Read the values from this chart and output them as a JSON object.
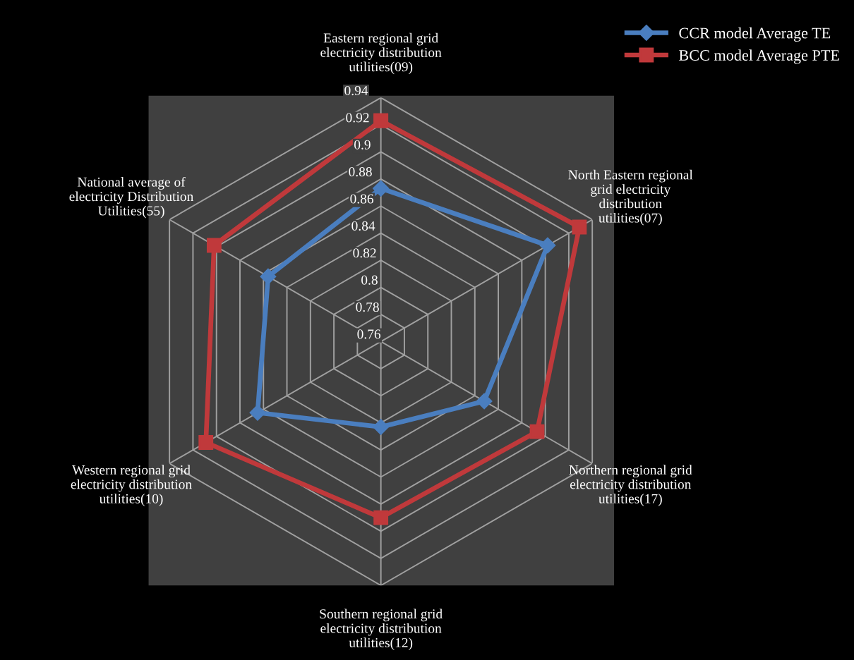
{
  "chart_data": {
    "type": "radar",
    "categories": [
      "Eastern regional grid\nelectricity distribution\nutilities(09)",
      "North Eastern regional\ngrid electricity\ndistribution\nutilities(07)",
      "Northern regional grid\nelectricity distribution\nutilities(17)",
      "Southern regional grid\nelectricity distribution\nutilities(12)",
      "Western regional grid\nelectricity distribution\nutilities(10)",
      "National average of\nelectricity Distribution\nUtilities(55)"
    ],
    "series": [
      {
        "name": "CCR model Average TE",
        "color": "#4a7ebf",
        "marker": "diamond",
        "values": [
          0.873,
          0.902,
          0.848,
          0.823,
          0.865,
          0.856
        ]
      },
      {
        "name": "BCC model Average PTE",
        "color": "#c0393b",
        "marker": "square",
        "values": [
          0.923,
          0.929,
          0.893,
          0.89,
          0.909,
          0.902
        ]
      }
    ],
    "ylim": [
      0.76,
      0.94
    ],
    "yticks": [
      0.76,
      0.78,
      0.8,
      0.82,
      0.84,
      0.86,
      0.88,
      0.9,
      0.92,
      0.94
    ],
    "grid": true,
    "legend": "top right",
    "line_style": "solid"
  }
}
